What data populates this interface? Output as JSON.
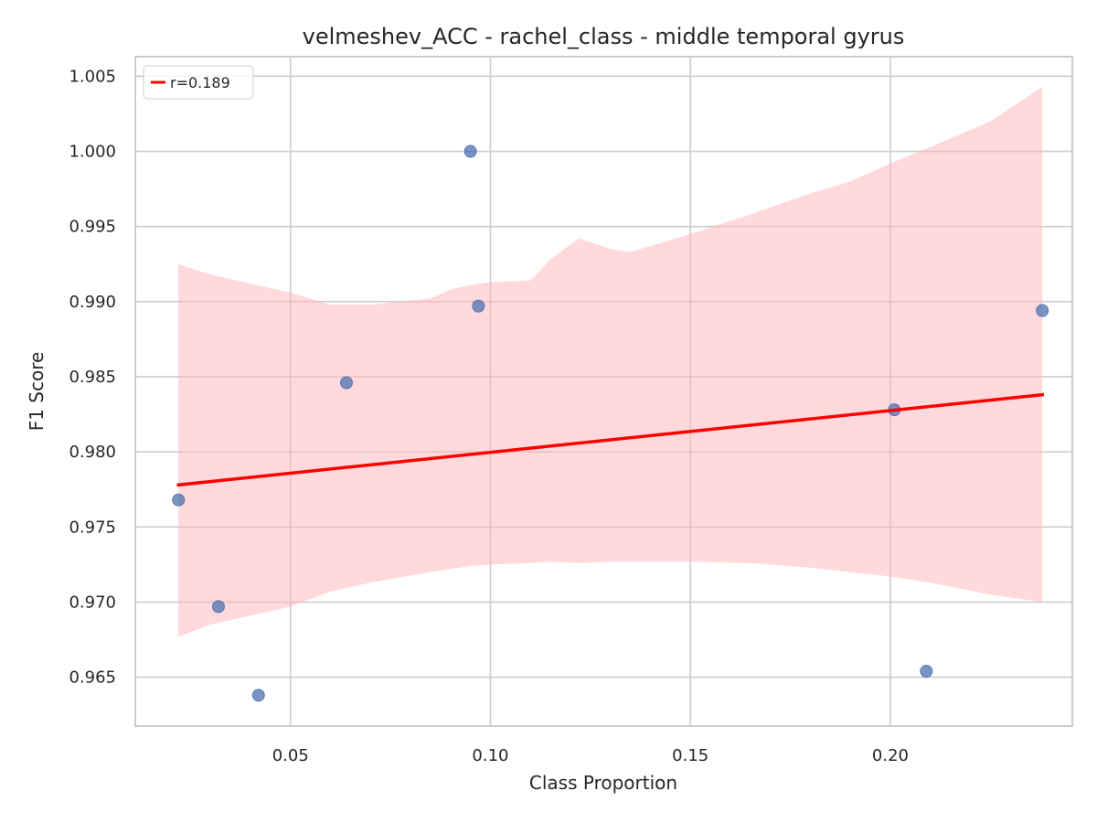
{
  "chart_data": {
    "type": "scatter",
    "title": "velmeshev_ACC - rachel_class - middle temporal gyrus",
    "xlabel": "Class Proportion",
    "ylabel": "F1 Score",
    "xlim": [
      0.0112,
      0.2455
    ],
    "ylim": [
      0.96175,
      1.0063
    ],
    "x_ticks": [
      0.05,
      0.1,
      0.15,
      0.2
    ],
    "x_tick_labels": [
      "0.05",
      "0.10",
      "0.15",
      "0.20"
    ],
    "y_ticks": [
      0.965,
      0.97,
      0.975,
      0.98,
      0.985,
      0.99,
      0.995,
      1.0,
      1.005
    ],
    "y_tick_labels": [
      "0.965",
      "0.970",
      "0.975",
      "0.980",
      "0.985",
      "0.990",
      "0.995",
      "1.000",
      "1.005"
    ],
    "grid": true,
    "legend_position": "top-left",
    "points": [
      {
        "x": 0.022,
        "y": 0.9768
      },
      {
        "x": 0.032,
        "y": 0.9697
      },
      {
        "x": 0.042,
        "y": 0.9638
      },
      {
        "x": 0.064,
        "y": 0.9846
      },
      {
        "x": 0.095,
        "y": 1.0
      },
      {
        "x": 0.097,
        "y": 0.9897
      },
      {
        "x": 0.201,
        "y": 0.9828
      },
      {
        "x": 0.209,
        "y": 0.9654
      },
      {
        "x": 0.238,
        "y": 0.9894
      }
    ],
    "regression": {
      "label": "r=0.189",
      "x": [
        0.022,
        0.238
      ],
      "y": [
        0.9778,
        0.9838
      ]
    },
    "confidence_band": {
      "x": [
        0.022,
        0.03,
        0.05,
        0.06,
        0.07,
        0.085,
        0.09,
        0.095,
        0.1,
        0.11,
        0.115,
        0.122,
        0.13,
        0.135,
        0.15,
        0.165,
        0.18,
        0.19,
        0.2,
        0.21,
        0.225,
        0.238
      ],
      "upper": [
        0.9925,
        0.9918,
        0.9906,
        0.9898,
        0.9898,
        0.9902,
        0.9908,
        0.9911,
        0.9913,
        0.9914,
        0.9928,
        0.9942,
        0.9935,
        0.9933,
        0.9945,
        0.9958,
        0.9972,
        0.998,
        0.9992,
        1.0003,
        1.002,
        1.0043
      ],
      "lower": [
        0.9677,
        0.9685,
        0.9697,
        0.9707,
        0.9713,
        0.972,
        0.9722,
        0.9724,
        0.9725,
        0.9726,
        0.9727,
        0.9726,
        0.9727,
        0.9727,
        0.9727,
        0.9726,
        0.9723,
        0.972,
        0.9717,
        0.9713,
        0.9705,
        0.97
      ]
    },
    "colors": {
      "points": "#4c72b0",
      "regression": "#ff0000",
      "band": "#ffb3b8"
    }
  }
}
